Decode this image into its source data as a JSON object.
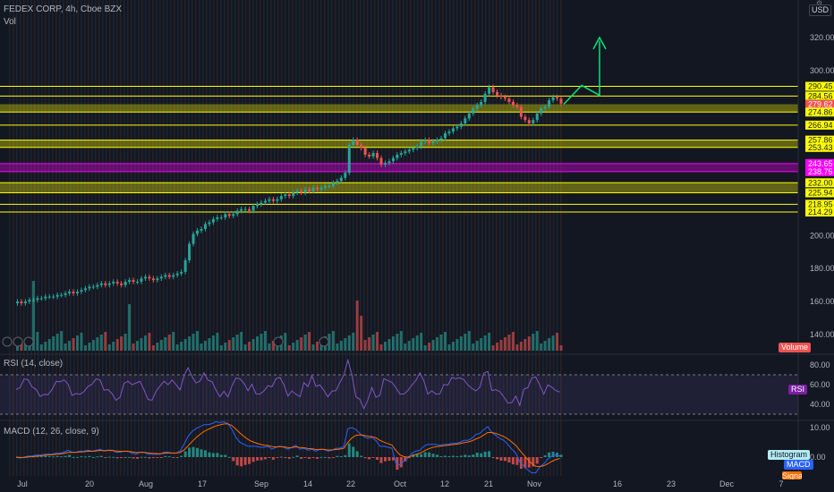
{
  "header": {
    "symbol_line": "FEDEX CORP, 4h, Cboe BZX",
    "volume_label": "Vol",
    "currency": "USD"
  },
  "price_axis": {
    "ticks": [
      "320.00",
      "300.00",
      "200.00",
      "180.00",
      "160.00",
      "140.00"
    ],
    "level_labels": [
      {
        "text": "290.45",
        "color": "#ffff00",
        "price": 290.45
      },
      {
        "text": "284.56",
        "color": "#ffff00",
        "price": 284.56
      },
      {
        "text": "279.62",
        "color": "#ef5350",
        "price": 279.62
      },
      {
        "text": "274.86",
        "color": "#ffff00",
        "price": 274.86
      },
      {
        "text": "266.94",
        "color": "#ffff00",
        "price": 266.94
      },
      {
        "text": "257.86",
        "color": "#ffff00",
        "price": 257.86
      },
      {
        "text": "253.43",
        "color": "#ffff00",
        "price": 253.43
      },
      {
        "text": "243.65",
        "color": "#ff00ff",
        "price": 243.65
      },
      {
        "text": "238.75",
        "color": "#ff00ff",
        "price": 238.75
      },
      {
        "text": "232.00",
        "color": "#ffff00",
        "price": 232.0
      },
      {
        "text": "225.94",
        "color": "#ffff00",
        "price": 225.94
      },
      {
        "text": "218.95",
        "color": "#ffff00",
        "price": 218.95
      },
      {
        "text": "214.29",
        "color": "#ffff00",
        "price": 214.29
      }
    ]
  },
  "zones": [
    {
      "from": 279.62,
      "to": 274.86,
      "color": "#ffff00"
    },
    {
      "from": 257.86,
      "to": 253.43,
      "color": "#ffff00"
    },
    {
      "from": 243.65,
      "to": 238.75,
      "color": "#ff00ff"
    },
    {
      "from": 232.0,
      "to": 225.94,
      "color": "#ffff00"
    }
  ],
  "time_axis": {
    "labels": [
      "Jul",
      "20",
      "Aug",
      "17",
      "Sep",
      "14",
      "22",
      "Oct",
      "12",
      "21",
      "Nov",
      "16",
      "23",
      "Dec",
      "7"
    ]
  },
  "volume_badge": "Volume",
  "rsi": {
    "title": "RSI (14, close)",
    "ticks": [
      "80.00",
      "60.00",
      "40.00"
    ],
    "badge": "RSI",
    "upper_band": 70,
    "lower_band": 30
  },
  "macd": {
    "title": "MACD (12, 26, close, 9)",
    "ticks": [
      "10.00",
      "0.00"
    ],
    "badges": {
      "histogram": "Histogram",
      "macd": "MACD",
      "signal": "Signal"
    }
  },
  "chart_data": {
    "type": "candlestick",
    "symbol": "FEDEX CORP",
    "interval": "4h",
    "exchange": "Cboe BZX",
    "price_range": [
      130,
      330
    ],
    "last_price": 279.62,
    "candle_closes": [
      160,
      159,
      160,
      161,
      161,
      162,
      162,
      163,
      163,
      163,
      164,
      164,
      165,
      166,
      165,
      166,
      167,
      168,
      169,
      169,
      170,
      171,
      170,
      171,
      172,
      171,
      170,
      172,
      173,
      172,
      172,
      174,
      175,
      174,
      173,
      174,
      175,
      176,
      175,
      176,
      177,
      178,
      185,
      195,
      201,
      203,
      204,
      207,
      208,
      210,
      211,
      211,
      213,
      212,
      213,
      215,
      216,
      216,
      215,
      218,
      219,
      220,
      221,
      222,
      221,
      222,
      224,
      225,
      224,
      226,
      227,
      226,
      228,
      227,
      229,
      228,
      229,
      230,
      230,
      232,
      233,
      235,
      238,
      255,
      258,
      255,
      253,
      249,
      248,
      250,
      247,
      243,
      244,
      245,
      247,
      249,
      250,
      251,
      252,
      253,
      254,
      257,
      258,
      256,
      257,
      258,
      259,
      262,
      263,
      265,
      266,
      268,
      271,
      274,
      277,
      279,
      281,
      286,
      290,
      287,
      285,
      284,
      283,
      281,
      279,
      278,
      272,
      270,
      268,
      270,
      274,
      277,
      278,
      282,
      284,
      283,
      280
    ],
    "projection": [
      {
        "date": "Nov (after last candle)",
        "price": 279.62
      },
      {
        "date": "~Nov 10",
        "price": 291
      },
      {
        "date": "~Nov 13",
        "price": 285
      },
      {
        "date": "~Nov 13",
        "price": 318
      }
    ],
    "rsi_range": [
      20,
      90
    ],
    "macd_range": [
      -5,
      13
    ]
  }
}
